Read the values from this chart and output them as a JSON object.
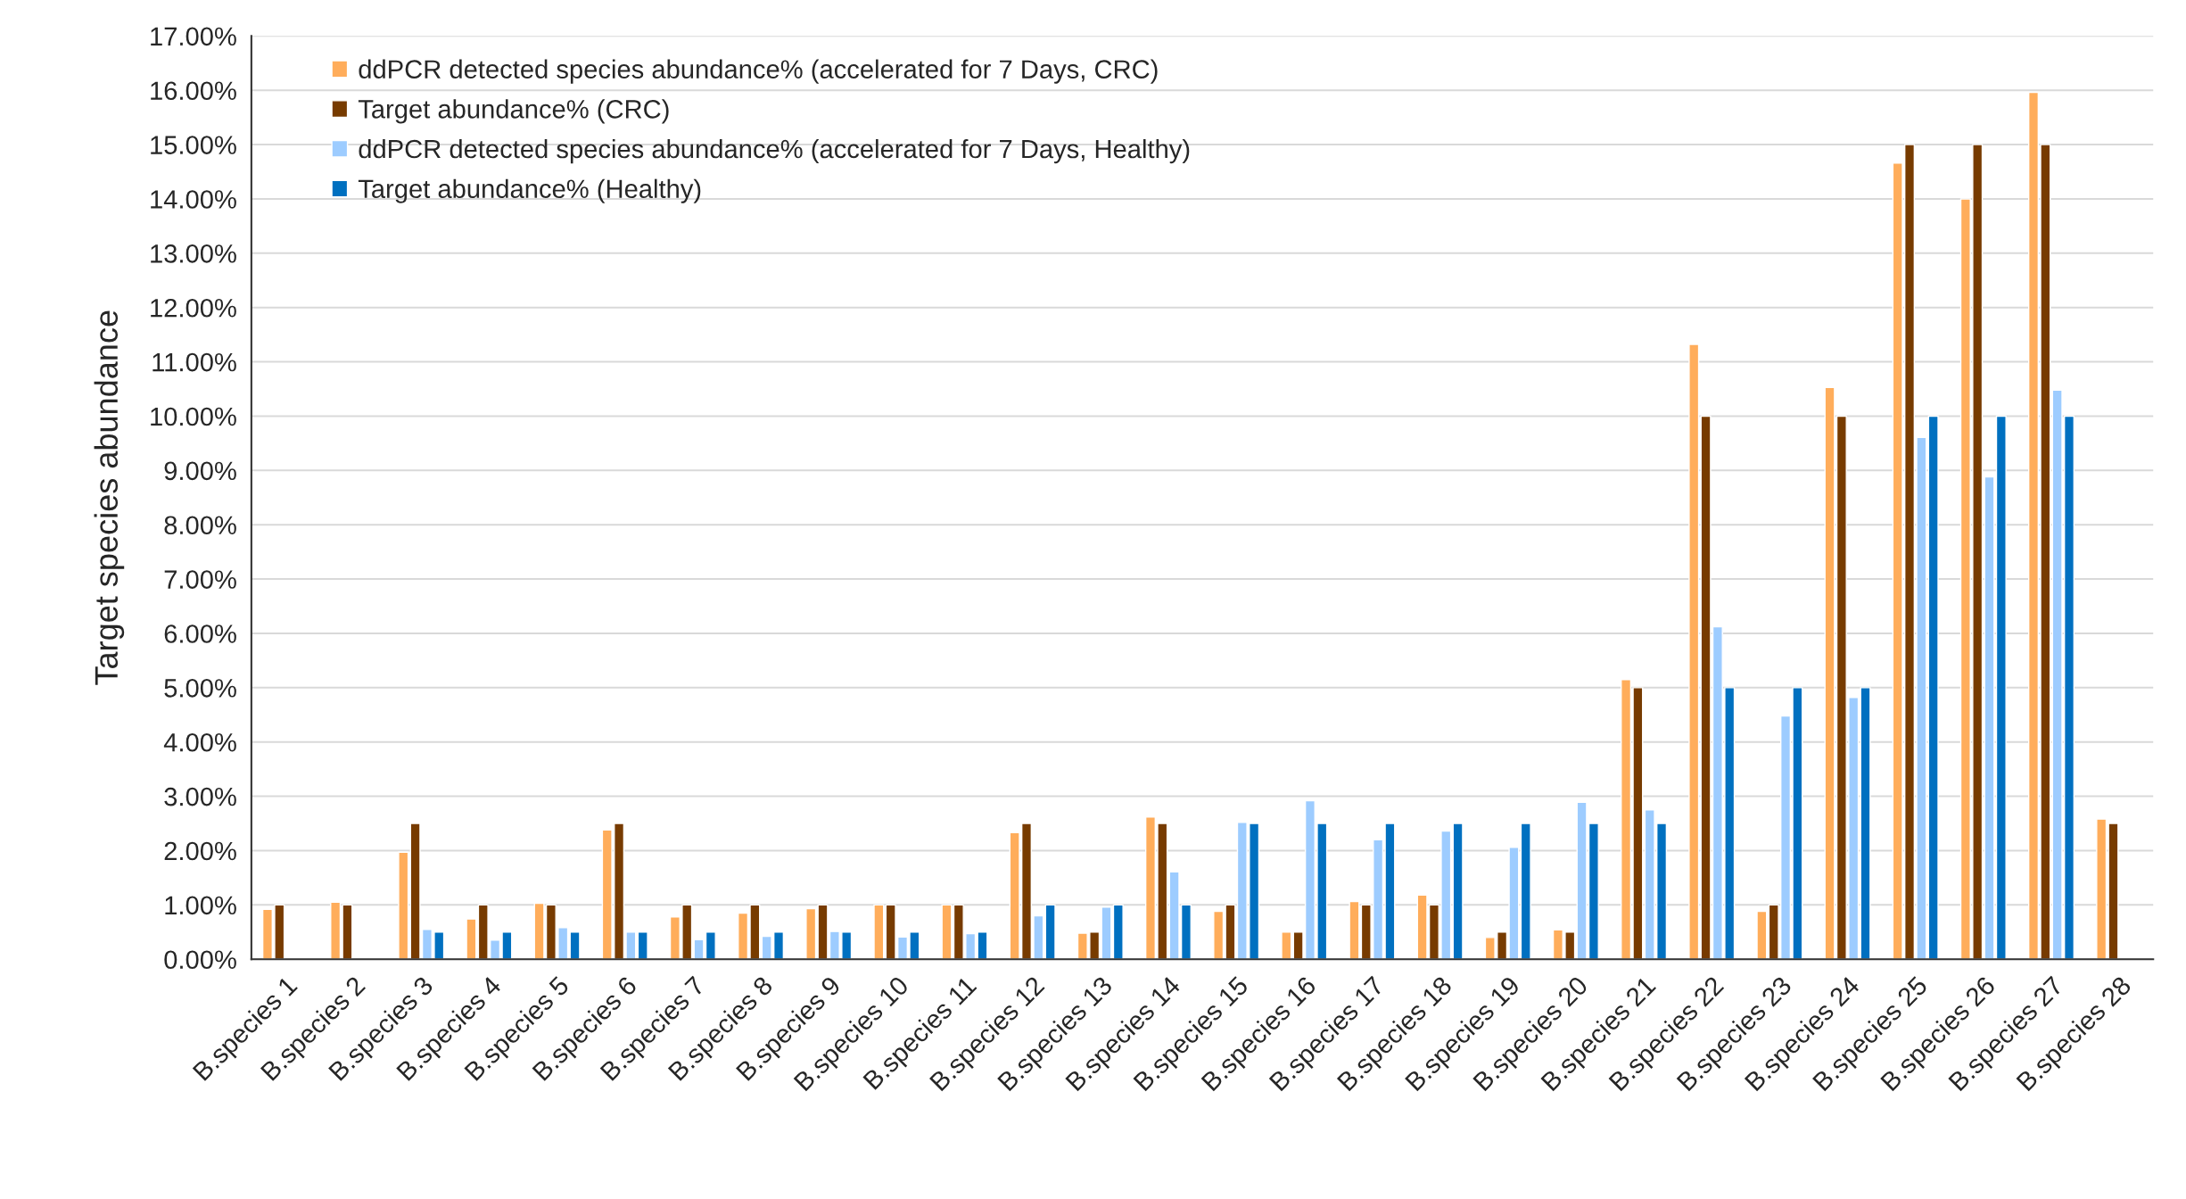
{
  "chart_data": {
    "type": "bar",
    "ylabel": "Target species abundance",
    "categories": [
      "B.species 1",
      "B.species 2",
      "B.species 3",
      "B.species 4",
      "B.species 5",
      "B.species 6",
      "B.species 7",
      "B.species 8",
      "B.species 9",
      "B.species 10",
      "B.species 11",
      "B.species 12",
      "B.species 13",
      "B.species 14",
      "B.species 15",
      "B.species 16",
      "B.species 17",
      "B.species 18",
      "B.species 19",
      "B.species 20",
      "B.species 21",
      "B.species 22",
      "B.species 23",
      "B.species 24",
      "B.species 25",
      "B.species 26",
      "B.species 27",
      "B.species 28"
    ],
    "series": [
      {
        "name": "ddPCR detected species abundance% (accelerated for 7 Days, CRC)",
        "color": "#ffad5b",
        "values": [
          0.92,
          1.05,
          1.97,
          0.74,
          1.03,
          2.38,
          0.78,
          0.85,
          0.93,
          1.0,
          1.0,
          2.33,
          0.48,
          2.62,
          0.88,
          0.5,
          1.06,
          1.18,
          0.4,
          0.54,
          5.15,
          11.32,
          0.88,
          10.53,
          14.66,
          14.0,
          15.96,
          2.58
        ]
      },
      {
        "name": "Target abundance% (CRC)",
        "color": "#773b00",
        "values": [
          1,
          1,
          2.5,
          1,
          1,
          2.5,
          1,
          1,
          1,
          1,
          1,
          2.5,
          0.5,
          2.5,
          1,
          0.5,
          1,
          1,
          0.5,
          0.5,
          5,
          10,
          1,
          10,
          15,
          15,
          15,
          2.5
        ]
      },
      {
        "name": "ddPCR detected species abundance% (accelerated for 7 Days, Healthy)",
        "color": "#9dccff",
        "values": [
          null,
          null,
          0.55,
          0.35,
          0.58,
          0.5,
          0.36,
          0.42,
          0.51,
          0.41,
          0.47,
          0.8,
          0.96,
          1.61,
          2.52,
          2.92,
          2.2,
          2.36,
          2.06,
          2.89,
          2.75,
          6.12,
          4.48,
          4.82,
          9.61,
          8.88,
          10.48,
          null
        ]
      },
      {
        "name": "Target abundance% (Healthy)",
        "color": "#0070c0",
        "values": [
          null,
          null,
          0.5,
          0.5,
          0.5,
          0.5,
          0.5,
          0.5,
          0.5,
          0.5,
          0.5,
          1,
          1,
          1,
          2.5,
          2.5,
          2.5,
          2.5,
          2.5,
          2.5,
          2.5,
          5,
          5,
          5,
          10,
          10,
          10,
          null
        ]
      }
    ],
    "ylim": [
      0,
      17
    ],
    "yticks": [
      {
        "value": 0,
        "label": "0.00%"
      },
      {
        "value": 1,
        "label": "1.00%"
      },
      {
        "value": 2,
        "label": "2.00%"
      },
      {
        "value": 3,
        "label": "3.00%"
      },
      {
        "value": 4,
        "label": "4.00%"
      },
      {
        "value": 5,
        "label": "5.00%"
      },
      {
        "value": 6,
        "label": "6.00%"
      },
      {
        "value": 7,
        "label": "7.00%"
      },
      {
        "value": 8,
        "label": "8.00%"
      },
      {
        "value": 9,
        "label": "9.00%"
      },
      {
        "value": 10,
        "label": "10.00%"
      },
      {
        "value": 11,
        "label": "11.00%"
      },
      {
        "value": 12,
        "label": "12.00%"
      },
      {
        "value": 13,
        "label": "13.00%"
      },
      {
        "value": 14,
        "label": "14.00%"
      },
      {
        "value": 15,
        "label": "15.00%"
      },
      {
        "value": 16,
        "label": "16.00%"
      },
      {
        "value": 17,
        "label": "17.00%"
      }
    ],
    "grid": "y",
    "legend": "top left"
  }
}
